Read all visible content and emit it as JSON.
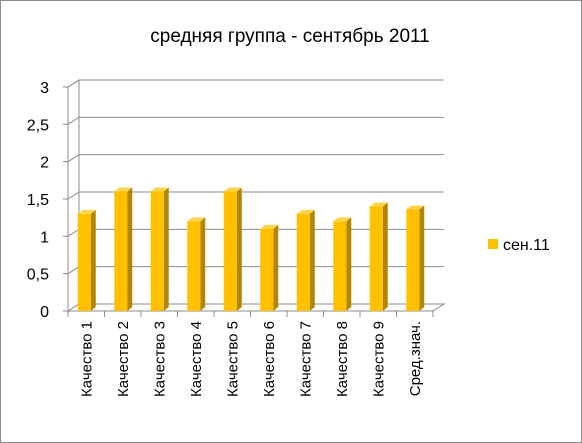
{
  "chart_data": {
    "type": "bar",
    "title": "средняя группа - сентябрь 2011",
    "categories": [
      "Качество 1",
      "Качество 2",
      "Качество 3",
      "Качество 4",
      "Качество 5",
      "Качество 6",
      "Качество 7",
      "Качество 8",
      "Качество 9",
      "Сред.знач."
    ],
    "series": [
      {
        "name": "сен.11",
        "values": [
          1.3,
          1.6,
          1.6,
          1.2,
          1.6,
          1.1,
          1.3,
          1.2,
          1.4,
          1.36
        ],
        "color": "#FFC000"
      }
    ],
    "y_ticks": [
      "0",
      "0,5",
      "1",
      "1,5",
      "2",
      "2,5",
      "3"
    ],
    "ylim": [
      0,
      3
    ],
    "grid": true,
    "legend_position": "right",
    "xlabel": "",
    "ylabel": ""
  }
}
